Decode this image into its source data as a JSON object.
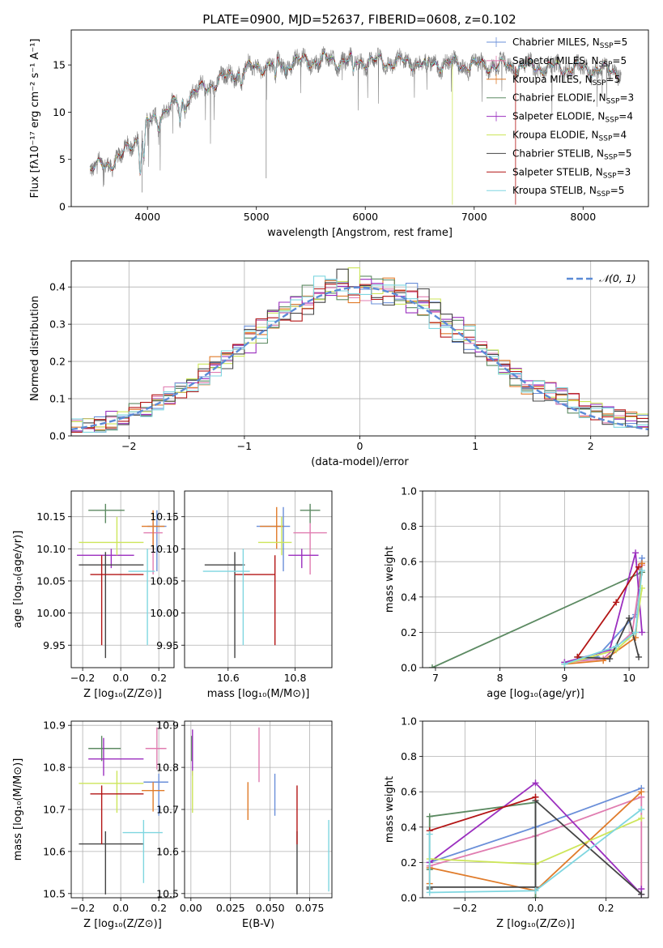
{
  "figure_title": "PLATE=0900, MJD=52637, FIBERID=0608, z=0.102",
  "colors": {
    "Chabrier MILES": "#6a8fd9",
    "Salpeter MILES": "#e07cb0",
    "Kroupa MILES": "#e07b2a",
    "Chabrier ELODIE": "#5c8a62",
    "Salpeter ELODIE": "#9b2fbf",
    "Kroupa ELODIE": "#cde65a",
    "Chabrier STELIB": "#444444",
    "Salpeter STELIB": "#b31515",
    "Kroupa STELIB": "#7fd6e0",
    "gaussian": "#5b8bd6"
  },
  "chart_data": [
    {
      "id": "spectrum",
      "type": "line",
      "xlabel": "wavelength [Angstrom, rest frame]",
      "ylabel": "Flux [fλ10⁻¹⁷ erg cm⁻² s⁻¹ A⁻¹]",
      "xlim": [
        3300,
        8600
      ],
      "ylim": [
        0,
        18.7
      ],
      "xticks": [
        4000,
        5000,
        6000,
        7000,
        8000
      ],
      "yticks": [
        0,
        5,
        10,
        15
      ],
      "legend_position": "right",
      "data_color": "#808080",
      "continuum_knots": {
        "x": [
          3470,
          3600,
          3750,
          3850,
          4000,
          4200,
          4400,
          4600,
          4800,
          5000,
          5300,
          5600,
          6000,
          6500,
          7000,
          7500,
          8000,
          8350
        ],
        "y": [
          3.9,
          4.4,
          5.1,
          6.6,
          8.8,
          10.5,
          11.8,
          13.0,
          14.1,
          14.8,
          15.3,
          15.5,
          15.4,
          15.2,
          15.0,
          14.8,
          14.6,
          14.4
        ]
      },
      "absorption_features": [
        {
          "x": 3934,
          "depth": 4.0
        },
        {
          "x": 3968,
          "depth": 3.5
        },
        {
          "x": 4101,
          "depth": 1.0
        },
        {
          "x": 4300,
          "depth": 2.0
        },
        {
          "x": 4340,
          "depth": 1.0
        },
        {
          "x": 4861,
          "depth": 1.2
        },
        {
          "x": 5175,
          "depth": 2.0
        },
        {
          "x": 5270,
          "depth": 1.0
        },
        {
          "x": 5890,
          "depth": 1.6
        },
        {
          "x": 6563,
          "depth": 1.0
        }
      ],
      "series": [
        {
          "name": "Chabrier MILES",
          "nssp": "5"
        },
        {
          "name": "Salpeter MILES",
          "nssp": "5"
        },
        {
          "name": "Kroupa MILES",
          "nssp": "5"
        },
        {
          "name": "Chabrier ELODIE",
          "nssp": "3"
        },
        {
          "name": "Salpeter ELODIE",
          "nssp": "4"
        },
        {
          "name": "Kroupa ELODIE",
          "nssp": "4"
        },
        {
          "name": "Chabrier STELIB",
          "nssp": "5"
        },
        {
          "name": "Salpeter STELIB",
          "nssp": "3"
        },
        {
          "name": "Kroupa STELIB",
          "nssp": "5"
        }
      ]
    },
    {
      "id": "residuals",
      "type": "line",
      "xlabel": "(data-model)/error",
      "ylabel": "Normed distribution",
      "xlim": [
        -2.5,
        2.5
      ],
      "ylim": [
        0,
        0.47
      ],
      "xticks": [
        -2,
        -1,
        0,
        1,
        2
      ],
      "yticks": [
        0.0,
        0.1,
        0.2,
        0.3,
        0.4
      ],
      "grid": true,
      "bin_start": -2.5,
      "bin_width": 0.1,
      "bin_count": 50,
      "gaussian_legend": "𝒩(0, 1)",
      "legend_position": "top-right"
    },
    {
      "id": "age_vs_Z",
      "type": "scatter",
      "xlabel": "Z [log₁₀(Z/Z⊙)]",
      "ylabel": "age  [log₁₀(age/yr)]",
      "xlim": [
        -0.26,
        0.28
      ],
      "ylim": [
        9.915,
        10.19
      ],
      "xticks": [
        -0.2,
        0.0,
        0.2
      ],
      "yticks": [
        9.95,
        10.0,
        10.05,
        10.1,
        10.15
      ],
      "grid": true,
      "points": [
        {
          "model": "Chabrier MILES",
          "x": 0.19,
          "y": 10.135,
          "xerr": [
            0.05,
            0.05
          ],
          "yerr": [
            0.07,
            0.025
          ]
        },
        {
          "model": "Salpeter MILES",
          "x": 0.17,
          "y": 10.125,
          "xerr": [
            0.05,
            0.05
          ],
          "yerr": [
            0.065,
            0.015
          ]
        },
        {
          "model": "Kroupa MILES",
          "x": 0.17,
          "y": 10.135,
          "xerr": [
            0.06,
            0.06
          ],
          "yerr": [
            0.035,
            0.025
          ]
        },
        {
          "model": "Chabrier ELODIE",
          "x": -0.08,
          "y": 10.16,
          "xerr": [
            0.09,
            0.1
          ],
          "yerr": [
            0.02,
            0.01
          ]
        },
        {
          "model": "Salpeter ELODIE",
          "x": -0.05,
          "y": 10.09,
          "xerr": [
            0.18,
            0.12
          ],
          "yerr": [
            0.02,
            0.01
          ]
        },
        {
          "model": "Kroupa ELODIE",
          "x": -0.02,
          "y": 10.11,
          "xerr": [
            0.2,
            0.14
          ],
          "yerr": [
            0.02,
            0.04
          ]
        },
        {
          "model": "Chabrier STELIB",
          "x": -0.08,
          "y": 10.075,
          "xerr": [
            0.14,
            0.2
          ],
          "yerr": [
            0.145,
            0.02
          ]
        },
        {
          "model": "Salpeter STELIB",
          "x": -0.1,
          "y": 10.06,
          "xerr": [
            0.06,
            0.22
          ],
          "yerr": [
            0.11,
            0.03
          ]
        },
        {
          "model": "Kroupa STELIB",
          "x": 0.14,
          "y": 10.065,
          "xerr": [
            0.1,
            0.04
          ],
          "yerr": [
            0.115,
            0.035
          ]
        }
      ]
    },
    {
      "id": "age_vs_mass",
      "type": "scatter",
      "xlabel": "mass [log₁₀(M/M⊙)]",
      "ylabel": "",
      "xlim": [
        10.47,
        10.91
      ],
      "ylim": [
        9.915,
        10.19
      ],
      "xticks": [
        10.6,
        10.8
      ],
      "yticks": [
        9.95,
        10.0,
        10.05,
        10.1,
        10.15
      ],
      "grid": true,
      "points": [
        {
          "model": "Chabrier MILES",
          "x": 10.765,
          "y": 10.135,
          "xerr": [
            0.08,
            0.02
          ],
          "yerr": [
            0.07,
            0.03
          ]
        },
        {
          "model": "Salpeter MILES",
          "x": 10.845,
          "y": 10.125,
          "xerr": [
            0.05,
            0.05
          ],
          "yerr": [
            0.065,
            0.015
          ]
        },
        {
          "model": "Kroupa MILES",
          "x": 10.745,
          "y": 10.135,
          "xerr": [
            0.05,
            0.02
          ],
          "yerr": [
            0.035,
            0.03
          ]
        },
        {
          "model": "Chabrier ELODIE",
          "x": 10.845,
          "y": 10.16,
          "xerr": [
            0.03,
            0.03
          ],
          "yerr": [
            0.02,
            0.01
          ]
        },
        {
          "model": "Salpeter ELODIE",
          "x": 10.82,
          "y": 10.09,
          "xerr": [
            0.04,
            0.05
          ],
          "yerr": [
            0.02,
            0.01
          ]
        },
        {
          "model": "Kroupa ELODIE",
          "x": 10.76,
          "y": 10.11,
          "xerr": [
            0.07,
            0.03
          ],
          "yerr": [
            0.02,
            0.04
          ]
        },
        {
          "model": "Chabrier STELIB",
          "x": 10.62,
          "y": 10.075,
          "xerr": [
            0.09,
            0.03
          ],
          "yerr": [
            0.145,
            0.02
          ]
        },
        {
          "model": "Salpeter STELIB",
          "x": 10.74,
          "y": 10.06,
          "xerr": [
            0.12,
            0.0
          ],
          "yerr": [
            0.11,
            0.03
          ]
        },
        {
          "model": "Kroupa STELIB",
          "x": 10.645,
          "y": 10.065,
          "xerr": [
            0.12,
            0.02
          ],
          "yerr": [
            0.115,
            0.035
          ]
        }
      ]
    },
    {
      "id": "weight_vs_age",
      "type": "line",
      "xlabel": "age  [log₁₀(age/yr)]",
      "ylabel": "mass weight",
      "xlim": [
        6.8,
        10.3
      ],
      "ylim": [
        0,
        1.0
      ],
      "xticks": [
        7,
        8,
        9,
        10
      ],
      "yticks": [
        0.0,
        0.2,
        0.4,
        0.6,
        0.8,
        1.0
      ],
      "grid": true,
      "series": [
        {
          "model": "Chabrier MILES",
          "x": [
            9.0,
            9.5,
            10.1,
            10.2
          ],
          "y": [
            0.03,
            0.06,
            0.3,
            0.62
          ]
        },
        {
          "model": "Salpeter MILES",
          "x": [
            9.0,
            9.6,
            10.05,
            10.2
          ],
          "y": [
            0.03,
            0.05,
            0.2,
            0.58
          ]
        },
        {
          "model": "Kroupa MILES",
          "x": [
            9.0,
            9.6,
            10.1,
            10.2
          ],
          "y": [
            0.02,
            0.04,
            0.17,
            0.59
          ]
        },
        {
          "model": "Chabrier ELODIE",
          "x": [
            6.95,
            10.2
          ],
          "y": [
            0.0,
            0.54
          ]
        },
        {
          "model": "Salpeter ELODIE",
          "x": [
            9.0,
            9.7,
            10.1,
            10.2
          ],
          "y": [
            0.03,
            0.1,
            0.65,
            0.2
          ]
        },
        {
          "model": "Kroupa ELODIE",
          "x": [
            9.0,
            9.8,
            10.1,
            10.2
          ],
          "y": [
            0.02,
            0.1,
            0.2,
            0.45
          ]
        },
        {
          "model": "Chabrier STELIB",
          "x": [
            9.2,
            9.7,
            10.0,
            10.15
          ],
          "y": [
            0.06,
            0.05,
            0.28,
            0.06
          ]
        },
        {
          "model": "Salpeter STELIB",
          "x": [
            9.2,
            9.8,
            10.15
          ],
          "y": [
            0.06,
            0.37,
            0.57
          ]
        },
        {
          "model": "Kroupa STELIB",
          "x": [
            9.0,
            9.8,
            10.1,
            10.2
          ],
          "y": [
            0.02,
            0.12,
            0.2,
            0.55
          ]
        }
      ]
    },
    {
      "id": "mass_vs_Z",
      "type": "scatter",
      "xlabel": "Z [log₁₀(Z/Z⊙)]",
      "ylabel": "mass [log₁₀(M/M⊙)]",
      "xlim": [
        -0.26,
        0.28
      ],
      "ylim": [
        10.49,
        10.91
      ],
      "xticks": [
        -0.2,
        0.0,
        0.2
      ],
      "yticks": [
        10.5,
        10.6,
        10.7,
        10.8,
        10.9
      ],
      "grid": true,
      "points": [
        {
          "model": "Chabrier MILES",
          "x": 0.2,
          "y": 10.765,
          "xerr": [
            0.08,
            0.05
          ],
          "yerr": [
            0.08,
            0.02
          ]
        },
        {
          "model": "Salpeter MILES",
          "x": 0.19,
          "y": 10.845,
          "xerr": [
            0.06,
            0.05
          ],
          "yerr": [
            0.05,
            0.05
          ]
        },
        {
          "model": "Kroupa MILES",
          "x": 0.17,
          "y": 10.745,
          "xerr": [
            0.06,
            0.06
          ],
          "yerr": [
            0.05,
            0.02
          ]
        },
        {
          "model": "Chabrier ELODIE",
          "x": -0.1,
          "y": 10.845,
          "xerr": [
            0.07,
            0.1
          ],
          "yerr": [
            0.03,
            0.03
          ]
        },
        {
          "model": "Salpeter ELODIE",
          "x": -0.09,
          "y": 10.82,
          "xerr": [
            0.08,
            0.21
          ],
          "yerr": [
            0.04,
            0.05
          ]
        },
        {
          "model": "Kroupa ELODIE",
          "x": -0.02,
          "y": 10.762,
          "xerr": [
            0.2,
            0.14
          ],
          "yerr": [
            0.07,
            0.03
          ]
        },
        {
          "model": "Chabrier STELIB",
          "x": -0.08,
          "y": 10.618,
          "xerr": [
            0.14,
            0.2
          ],
          "yerr": [
            0.12,
            0.03
          ]
        },
        {
          "model": "Salpeter STELIB",
          "x": -0.1,
          "y": 10.737,
          "xerr": [
            0.06,
            0.22
          ],
          "yerr": [
            0.12,
            0.02
          ]
        },
        {
          "model": "Kroupa STELIB",
          "x": 0.12,
          "y": 10.645,
          "xerr": [
            0.11,
            0.1
          ],
          "yerr": [
            0.12,
            0.03
          ]
        }
      ]
    },
    {
      "id": "mass_vs_EBV",
      "type": "scatter",
      "xlabel": "E(B-V)",
      "ylabel": "",
      "xlim": [
        -0.004,
        0.089
      ],
      "ylim": [
        10.49,
        10.91
      ],
      "xticks": [
        0.0,
        0.025,
        0.05,
        0.075
      ],
      "xtick_labels": [
        "0.00",
        "0.025",
        "0.050",
        "0.075"
      ],
      "yticks": [
        10.5,
        10.6,
        10.7,
        10.8,
        10.9
      ],
      "grid": true,
      "points": [
        {
          "model": "Chabrier MILES",
          "x": 0.053,
          "y": 10.765,
          "yerr": [
            0.08,
            0.02
          ]
        },
        {
          "model": "Salpeter MILES",
          "x": 0.043,
          "y": 10.845,
          "yerr": [
            0.08,
            0.05
          ]
        },
        {
          "model": "Kroupa MILES",
          "x": 0.036,
          "y": 10.745,
          "yerr": [
            0.07,
            0.02
          ]
        },
        {
          "model": "Chabrier ELODIE",
          "x": 0.0005,
          "y": 10.845,
          "yerr": [
            0.03,
            0.03
          ]
        },
        {
          "model": "Salpeter ELODIE",
          "x": 0.001,
          "y": 10.82,
          "yerr": [
            0.04,
            0.07
          ]
        },
        {
          "model": "Kroupa ELODIE",
          "x": 0.001,
          "y": 10.762,
          "yerr": [
            0.07,
            0.03
          ]
        },
        {
          "model": "Chabrier STELIB",
          "x": 0.067,
          "y": 10.618,
          "yerr": [
            0.12,
            0.03
          ]
        },
        {
          "model": "Salpeter STELIB",
          "x": 0.067,
          "y": 10.737,
          "yerr": [
            0.12,
            0.02
          ]
        },
        {
          "model": "Kroupa STELIB",
          "x": 0.087,
          "y": 10.645,
          "yerr": [
            0.14,
            0.03
          ]
        }
      ]
    },
    {
      "id": "weight_vs_Z",
      "type": "line",
      "xlabel": "Z [log₁₀(Z/Z⊙)]",
      "ylabel": "mass weight",
      "xlim": [
        -0.32,
        0.32
      ],
      "ylim": [
        0,
        1.0
      ],
      "xticks": [
        -0.2,
        0.0,
        0.2
      ],
      "yticks": [
        0.0,
        0.2,
        0.4,
        0.6,
        0.8,
        1.0
      ],
      "grid": true,
      "series": [
        {
          "model": "Chabrier MILES",
          "x": [
            -0.3,
            0.0,
            0.3
          ],
          "y": [
            0.2,
            0.4,
            0.62
          ]
        },
        {
          "model": "Salpeter MILES",
          "x": [
            -0.3,
            0.0,
            0.3,
            0.3
          ],
          "y": [
            0.18,
            0.35,
            0.57,
            0.05
          ]
        },
        {
          "model": "Kroupa MILES",
          "x": [
            -0.3,
            -0.3,
            0.0,
            0.3
          ],
          "y": [
            0.08,
            0.17,
            0.04,
            0.6
          ]
        },
        {
          "model": "Chabrier ELODIE",
          "x": [
            -0.3,
            -0.3,
            0.0,
            0.0
          ],
          "y": [
            0.16,
            0.46,
            0.54,
            0.0
          ]
        },
        {
          "model": "Salpeter ELODIE",
          "x": [
            -0.3,
            0.0,
            0.3,
            0.3
          ],
          "y": [
            0.2,
            0.65,
            0.02,
            0.05
          ]
        },
        {
          "model": "Kroupa ELODIE",
          "x": [
            -0.3,
            0.0,
            0.3
          ],
          "y": [
            0.22,
            0.19,
            0.45
          ]
        },
        {
          "model": "Chabrier STELIB",
          "x": [
            -0.3,
            -0.3,
            0.0,
            0.0,
            0.3
          ],
          "y": [
            0.05,
            0.06,
            0.06,
            0.55,
            0.02
          ]
        },
        {
          "model": "Salpeter STELIB",
          "x": [
            -0.3,
            0.0,
            0.0
          ],
          "y": [
            0.38,
            0.57,
            0.57
          ]
        },
        {
          "model": "Kroupa STELIB",
          "x": [
            -0.3,
            -0.3,
            0.0,
            0.3
          ],
          "y": [
            0.36,
            0.03,
            0.04,
            0.5
          ]
        }
      ]
    }
  ]
}
